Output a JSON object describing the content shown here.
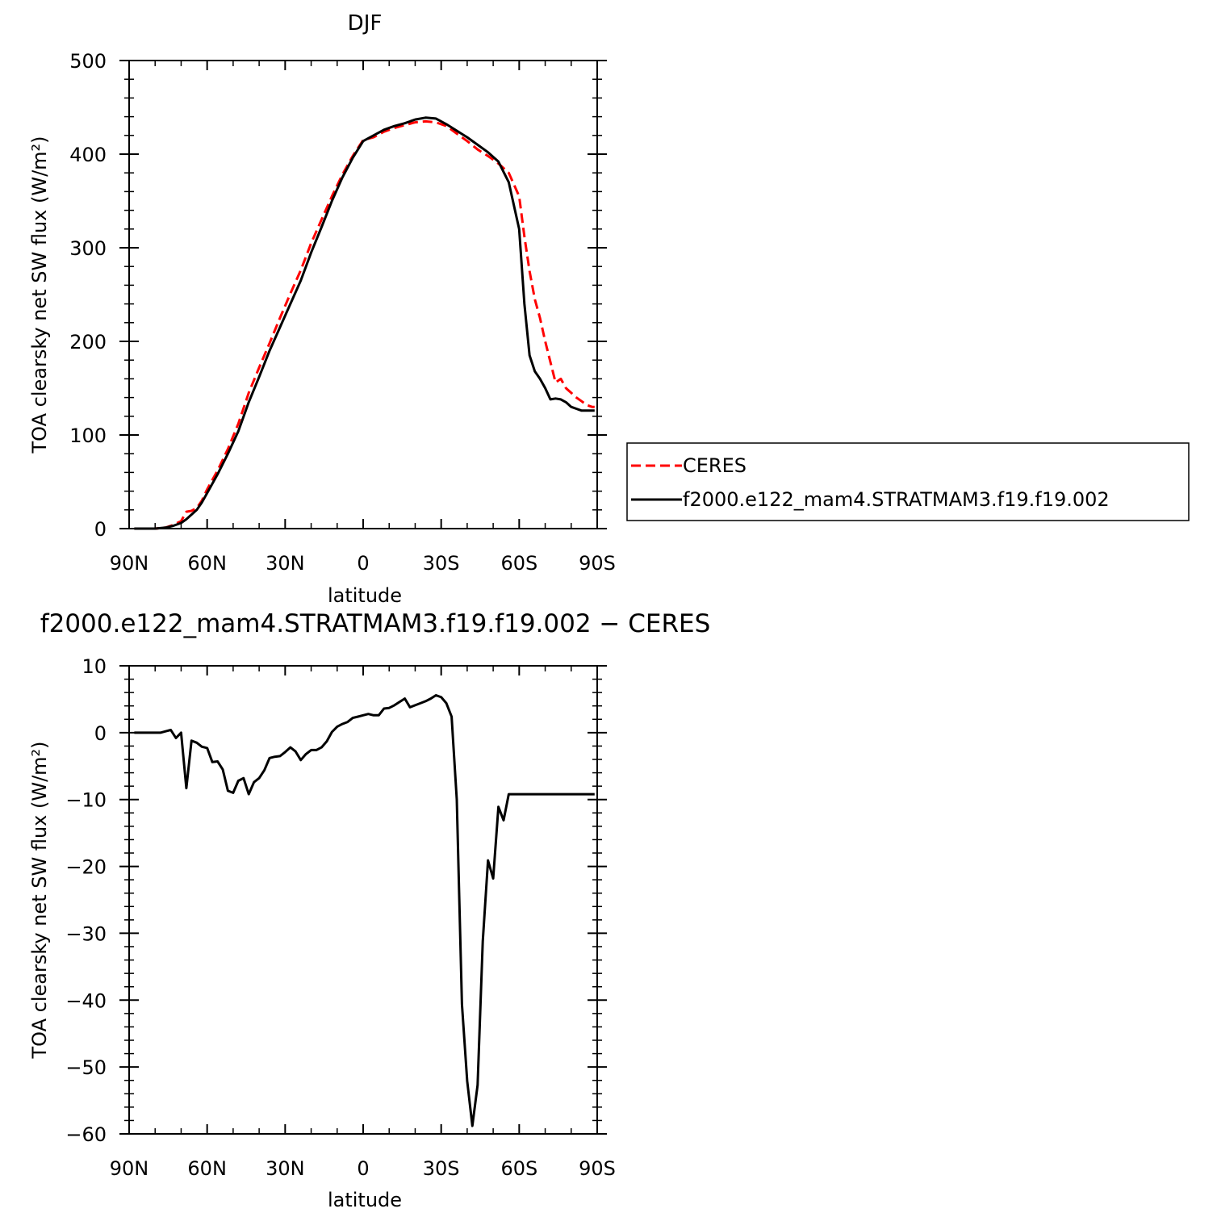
{
  "chart_data": [
    {
      "type": "line",
      "title": "DJF",
      "xlabel": "latitude",
      "ylabel": "TOA clearsky net SW flux (W/m²)",
      "xlim": [
        90,
        -90
      ],
      "ylim": [
        0,
        500
      ],
      "xticks": [
        90,
        60,
        30,
        0,
        -30,
        -60,
        -90
      ],
      "xtick_labels": [
        "90N",
        "60N",
        "30N",
        "0",
        "30S",
        "60S",
        "90S"
      ],
      "yticks": [
        0,
        100,
        200,
        300,
        400,
        500
      ],
      "ytick_labels": [
        "0",
        "100",
        "200",
        "300",
        "400",
        "500"
      ],
      "legend_position": "right",
      "series": [
        {
          "name": "CERES",
          "color": "#ff0000",
          "dash": "dashed",
          "x": [
            88,
            84,
            80,
            76,
            73,
            70,
            68,
            66,
            64,
            62,
            60,
            56,
            52,
            48,
            44,
            40,
            36,
            32,
            28,
            24,
            20,
            16,
            12,
            8,
            4,
            0,
            -4,
            -8,
            -12,
            -16,
            -20,
            -24,
            -28,
            -32,
            -36,
            -40,
            -44,
            -48,
            -52,
            -56,
            -60,
            -62,
            -64,
            -66,
            -68,
            -70,
            -72,
            -74,
            -76,
            -78,
            -80,
            -82,
            -84,
            -86,
            -88,
            -89
          ],
          "y": [
            0,
            0,
            0,
            1,
            4,
            8,
            18,
            19,
            22,
            30,
            42,
            62,
            85,
            112,
            145,
            172,
            198,
            225,
            251,
            276,
            305,
            330,
            355,
            378,
            398,
            415,
            418,
            424,
            428,
            431,
            434,
            435,
            434,
            430,
            422,
            414,
            405,
            398,
            390,
            380,
            355,
            312,
            275,
            245,
            225,
            200,
            178,
            156,
            160,
            150,
            145,
            140,
            136,
            132,
            130,
            130
          ]
        },
        {
          "name": "f2000.e122_mam4.STRATMAM3.f19.f19.002",
          "color": "#000000",
          "dash": "solid",
          "x": [
            88,
            84,
            80,
            76,
            73,
            70,
            68,
            66,
            64,
            62,
            60,
            56,
            52,
            48,
            44,
            40,
            36,
            32,
            28,
            24,
            20,
            16,
            12,
            8,
            4,
            0,
            -4,
            -8,
            -12,
            -16,
            -20,
            -24,
            -28,
            -32,
            -36,
            -40,
            -44,
            -48,
            -52,
            -56,
            -60,
            -62,
            -64,
            -66,
            -68,
            -70,
            -72,
            -74,
            -76,
            -78,
            -80,
            -82,
            -84,
            -86,
            -88,
            -89
          ],
          "y": [
            0,
            0,
            0,
            1,
            3,
            6,
            10,
            15,
            20,
            28,
            38,
            58,
            80,
            104,
            135,
            162,
            190,
            215,
            240,
            265,
            295,
            322,
            350,
            375,
            396,
            414,
            420,
            426,
            430,
            433,
            437,
            439,
            438,
            432,
            425,
            418,
            410,
            402,
            392,
            370,
            320,
            240,
            185,
            168,
            160,
            150,
            138,
            139,
            138,
            135,
            130,
            128,
            126,
            126,
            126,
            126
          ]
        }
      ]
    },
    {
      "type": "line",
      "title": "f2000.e122_mam4.STRATMAM3.f19.f19.002 − CERES",
      "xlabel": "latitude",
      "ylabel": "TOA clearsky net SW flux (W/m²)",
      "xlim": [
        90,
        -90
      ],
      "ylim": [
        -60,
        10
      ],
      "xticks": [
        90,
        60,
        30,
        0,
        -30,
        -60,
        -90
      ],
      "xtick_labels": [
        "90N",
        "60N",
        "30N",
        "0",
        "30S",
        "60S",
        "90S"
      ],
      "yticks": [
        10,
        0,
        -10,
        -20,
        -30,
        -40,
        -50,
        -60
      ],
      "ytick_labels": [
        "10",
        "0",
        "−10",
        "−20",
        "−30",
        "−40",
        "−50",
        "−60"
      ],
      "series": [
        {
          "name": "",
          "color": "#000000",
          "dash": "solid",
          "x": [
            88,
            85,
            82,
            80,
            78,
            76,
            74,
            72,
            70,
            68,
            66,
            64,
            62,
            60,
            58,
            56,
            54,
            52,
            50,
            48,
            46,
            44,
            42,
            40,
            38,
            36,
            34,
            32,
            30,
            28,
            26,
            24,
            22,
            20,
            18,
            16,
            14,
            12,
            10,
            8,
            6,
            4,
            2,
            0,
            -2,
            -4,
            -6,
            -8,
            -10,
            -12,
            -14,
            -16,
            -18,
            -20,
            -22,
            -24,
            -26,
            -28,
            -30,
            -32,
            -34,
            -36,
            -38,
            -40,
            -42,
            -44,
            -46,
            -48,
            -50,
            -52,
            -54,
            -56,
            -58,
            -60,
            -62,
            -64,
            -66,
            -68,
            -70,
            -72,
            -74,
            -76,
            -78,
            -80,
            -82,
            -84,
            -86,
            -88,
            -89
          ],
          "y": [
            0,
            0,
            0,
            0,
            0,
            0.2,
            0.4,
            -0.8,
            0,
            -8.3,
            -1.2,
            -1.5,
            -2.1,
            -2.3,
            -4.4,
            -4.3,
            -5.5,
            -8.7,
            -9,
            -7.2,
            -6.8,
            -9.2,
            -7.4,
            -6.8,
            -5.6,
            -3.8,
            -3.6,
            -3.5,
            -2.9,
            -2.2,
            -2.8,
            -4.1,
            -3.2,
            -2.6,
            -2.6,
            -2.2,
            -1.3,
            0.1,
            0.9,
            1.3,
            1.6,
            2.2,
            2.4,
            2.6,
            2.8,
            2.6,
            2.6,
            3.6,
            3.7,
            4.1,
            4.6,
            5.1,
            3.8,
            4.1,
            4.4,
            4.7,
            5.1,
            5.6,
            5.3,
            4.4,
            2.4,
            -10,
            -40.6,
            -52.1,
            -58.8,
            -52.7,
            -31.2,
            -19.1,
            -21.8,
            -11.1,
            -13.1,
            -9.2,
            -9.2,
            -9.2,
            -9.2,
            -9.2,
            -9.2,
            -9.2,
            -9.2,
            -9.2,
            -9.2,
            -9.2,
            -9.2,
            -9.2,
            -9.2,
            -9.2,
            -9.2,
            -9.2,
            -9.2
          ]
        }
      ]
    }
  ]
}
